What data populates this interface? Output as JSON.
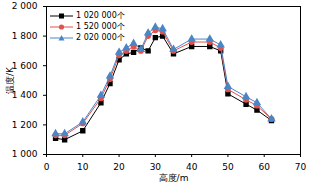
{
  "chart_data": {
    "type": "line",
    "xlabel": "高度/m",
    "ylabel": "温度/K",
    "x": [
      2.5,
      5,
      10,
      15,
      17.5,
      20,
      22,
      24,
      26,
      28,
      30,
      32,
      35,
      40,
      45,
      48,
      50,
      55,
      58,
      62
    ],
    "series": [
      {
        "name": "1 020 000个",
        "color": "#000000",
        "marker": "square",
        "values": [
          1110,
          1100,
          1160,
          1350,
          1480,
          1640,
          1680,
          1690,
          1720,
          1700,
          1790,
          1800,
          1680,
          1730,
          1730,
          1700,
          1410,
          1340,
          1300,
          1230
        ]
      },
      {
        "name": "1 520 000个",
        "color": "#e0524f",
        "marker": "circle",
        "values": [
          1130,
          1130,
          1210,
          1380,
          1510,
          1670,
          1700,
          1730,
          1700,
          1800,
          1840,
          1830,
          1700,
          1760,
          1760,
          1720,
          1440,
          1370,
          1330,
          1240
        ]
      },
      {
        "name": "2 020 000个",
        "color": "#4a86c6",
        "marker": "triangle",
        "values": [
          1140,
          1140,
          1220,
          1400,
          1530,
          1690,
          1720,
          1750,
          1710,
          1820,
          1860,
          1850,
          1710,
          1780,
          1780,
          1740,
          1460,
          1390,
          1350,
          1240
        ]
      }
    ],
    "xlim": [
      0,
      70
    ],
    "xticks": [
      0,
      10,
      20,
      30,
      40,
      50,
      60,
      70
    ],
    "ylim": [
      1000,
      2000
    ],
    "yticks": [
      {
        "value": 1000,
        "label": "1 000"
      },
      {
        "value": 1200,
        "label": "1 200"
      },
      {
        "value": 1400,
        "label": "1 400"
      },
      {
        "value": 1600,
        "label": "1 600"
      },
      {
        "value": 1800,
        "label": "1 800"
      },
      {
        "value": 2000,
        "label": "2 000"
      }
    ],
    "grid": false,
    "legend": "upper left"
  }
}
